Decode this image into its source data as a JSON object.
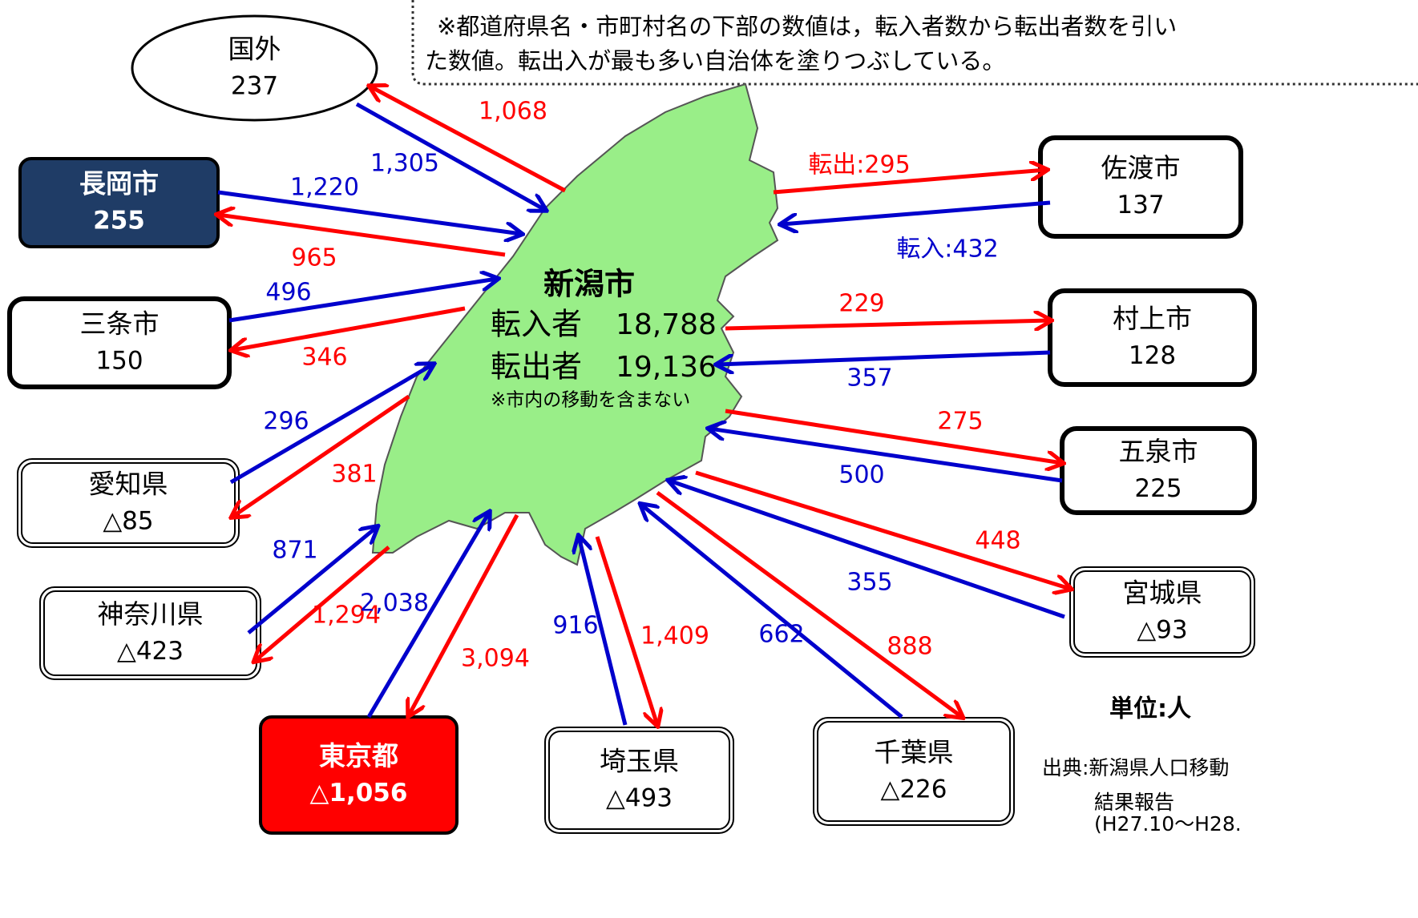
{
  "note": [
    "※都道府県名・市町村名の下部の数値は，転入者数から転出者数を引い",
    "た数値。転出入が最も多い自治体を塗りつぶしている。"
  ],
  "center": {
    "name": "新潟市",
    "rows": [
      {
        "label": "転入者",
        "value": "18,788"
      },
      {
        "label": "転出者",
        "value": "19,136"
      }
    ],
    "note": "※市内の移動を含まない"
  },
  "nodes": [
    {
      "name": "国外",
      "value": "237",
      "in": "1,305",
      "out": "1,068"
    },
    {
      "name": "長岡市",
      "value": "255",
      "in": "1,220",
      "out": "965"
    },
    {
      "name": "三条市",
      "value": "150",
      "in": "496",
      "out": "346"
    },
    {
      "name": "愛知県",
      "value": "△85",
      "in": "296",
      "out": "381"
    },
    {
      "name": "神奈川県",
      "value": "△423",
      "in": "871",
      "out": "1,294"
    },
    {
      "name": "東京都",
      "value": "△1,056",
      "in": "2,038",
      "out": "3,094"
    },
    {
      "name": "埼玉県",
      "value": "△493",
      "in": "916",
      "out": "1,409"
    },
    {
      "name": "千葉県",
      "value": "△226",
      "in": "662",
      "out": "888"
    },
    {
      "name": "宮城県",
      "value": "△93",
      "in": "355",
      "out": "448"
    },
    {
      "name": "五泉市",
      "value": "225",
      "in": "500",
      "out": "275"
    },
    {
      "name": "村上市",
      "value": "128",
      "in": "357",
      "out": "229"
    },
    {
      "name": "佐渡市",
      "value": "137",
      "in": "転入:432",
      "out": "転出:295"
    }
  ],
  "unit": "単位:人",
  "source": [
    "出典:新潟県人口移動",
    "結果報告",
    "(H27.10〜H28."
  ]
}
